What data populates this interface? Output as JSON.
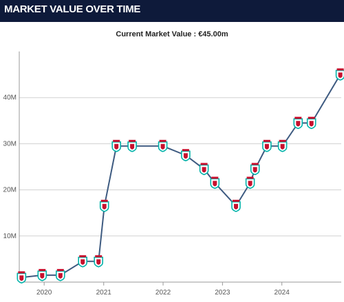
{
  "header": {
    "title": "MARKET VALUE OVER TIME"
  },
  "current_value": {
    "label": "Current Market Value : €45.00m"
  },
  "colors": {
    "header_bg": "#0e1a3a",
    "line": "#3d5a80",
    "grid": "#d0d0d0",
    "axis": "#999999",
    "crest_red": "#c8102e",
    "crest_teal": "#00b2a9"
  },
  "chart_data": {
    "type": "line",
    "title": "",
    "xlabel": "",
    "ylabel": "",
    "xlim": [
      "2019-08-01",
      "2024-12-31"
    ],
    "ylim": [
      0,
      50000000
    ],
    "grid": true,
    "x_ticks": [
      {
        "date": "2020-01-01",
        "label": "2020"
      },
      {
        "date": "2021-01-01",
        "label": "2021"
      },
      {
        "date": "2022-01-01",
        "label": "2022"
      },
      {
        "date": "2023-01-01",
        "label": "2023"
      },
      {
        "date": "2024-01-01",
        "label": "2024"
      }
    ],
    "y_ticks": [
      {
        "value": 10000000,
        "label": "10M"
      },
      {
        "value": 20000000,
        "label": "20M"
      },
      {
        "value": 30000000,
        "label": "30M"
      },
      {
        "value": 40000000,
        "label": "40M"
      }
    ],
    "series": [
      {
        "marker": "club-crest",
        "points": [
          {
            "date": "2019-08-15",
            "value": 1000000
          },
          {
            "date": "2019-12-20",
            "value": 1500000
          },
          {
            "date": "2020-04-10",
            "value": 1500000
          },
          {
            "date": "2020-08-25",
            "value": 4500000
          },
          {
            "date": "2020-11-30",
            "value": 4500000
          },
          {
            "date": "2021-01-05",
            "value": 16500000
          },
          {
            "date": "2021-03-20",
            "value": 29500000
          },
          {
            "date": "2021-06-25",
            "value": 29500000
          },
          {
            "date": "2021-12-30",
            "value": 29500000
          },
          {
            "date": "2022-05-20",
            "value": 27500000
          },
          {
            "date": "2022-09-10",
            "value": 24500000
          },
          {
            "date": "2022-11-15",
            "value": 21500000
          },
          {
            "date": "2023-03-25",
            "value": 16500000
          },
          {
            "date": "2023-06-20",
            "value": 21500000
          },
          {
            "date": "2023-07-20",
            "value": 24500000
          },
          {
            "date": "2023-10-01",
            "value": 29500000
          },
          {
            "date": "2024-01-05",
            "value": 29500000
          },
          {
            "date": "2024-04-10",
            "value": 34500000
          },
          {
            "date": "2024-07-01",
            "value": 34500000
          },
          {
            "date": "2024-12-25",
            "value": 45000000
          }
        ]
      }
    ]
  }
}
